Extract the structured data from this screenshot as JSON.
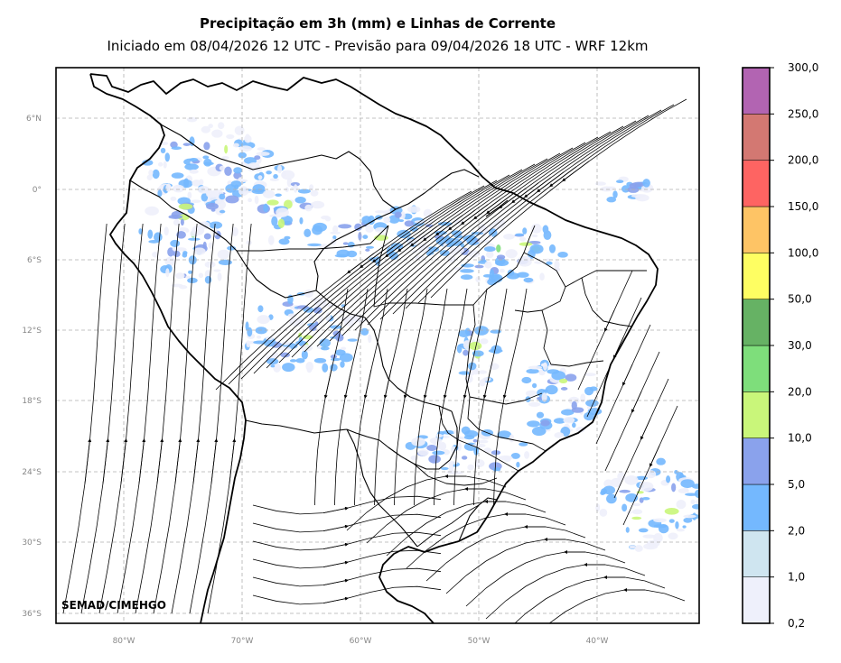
{
  "title": "Precipitação em 3h (mm) e Linhas de Corrente",
  "subtitle": "Iniciado em 08/04/2026 12 UTC - Previsão para 09/04/2026 18 UTC - WRF 12km",
  "credit": "SEMAD/CIMEHGO",
  "lat_labels": [
    "6°N",
    "0°",
    "6°S",
    "12°S",
    "18°S",
    "24°S",
    "30°S",
    "36°S"
  ],
  "lon_labels": [
    "80°W",
    "70°W",
    "60°W",
    "50°W",
    "40°W"
  ],
  "colorbar": {
    "levels": [
      "0,2",
      "1,0",
      "2,0",
      "5,0",
      "10,0",
      "20,0",
      "30,0",
      "50,0",
      "100,0",
      "150,0",
      "200,0",
      "250,0",
      "300,0"
    ],
    "colors": [
      "#eef0fb",
      "#cfe5f0",
      "#74b8fe",
      "#8aa2ec",
      "#c9f67a",
      "#7ede7b",
      "#66b264",
      "#fefe62",
      "#fec465",
      "#fe6462",
      "#d37872",
      "#b264b2"
    ]
  },
  "precip_colors": {
    "light": "#eef0fb",
    "low": "#74b8fe",
    "mid": "#8aa2ec",
    "high": "#c9f67a",
    "heavy": "#7ede7b"
  }
}
